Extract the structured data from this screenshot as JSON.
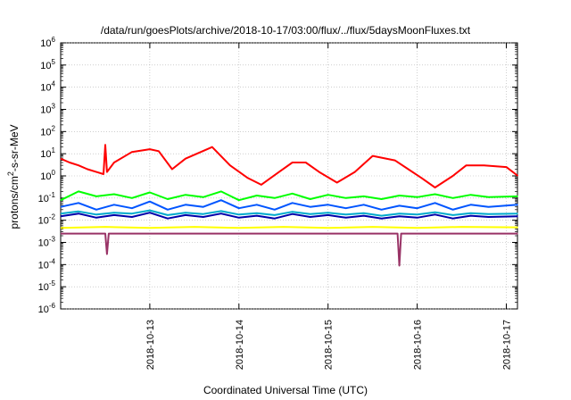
{
  "chart_data": {
    "type": "line",
    "title": "/data/run/goesPlots/archive/2018-10-17/03:00/flux/../flux/5daysMoonFluxes.txt",
    "xlabel": "Coordinated Universal Time (UTC)",
    "ylabel": "protons/cm²-s-sr-MeV",
    "y_scale": "log",
    "ylim_exp": [
      -6,
      6
    ],
    "y_tick_exponents": [
      -6,
      -5,
      -4,
      -3,
      -2,
      -1,
      0,
      1,
      2,
      3,
      4,
      5,
      6
    ],
    "x_range_days": [
      "2018-10-12 00:00",
      "2018-10-17 03:00"
    ],
    "x_ticks": [
      "2018-10-13",
      "2018-10-14",
      "2018-10-15",
      "2018-10-16",
      "2018-10-17"
    ],
    "grid": true,
    "legend": "none",
    "series": [
      {
        "color": "#ff0000",
        "x_days": [
          0.0,
          0.1,
          0.2,
          0.3,
          0.4,
          0.48,
          0.5,
          0.52,
          0.6,
          0.8,
          1.0,
          1.1,
          1.25,
          1.4,
          1.7,
          1.9,
          2.1,
          2.25,
          2.45,
          2.6,
          2.75,
          2.9,
          3.1,
          3.3,
          3.5,
          3.75,
          3.9,
          4.05,
          4.2,
          4.4,
          4.55,
          4.75,
          5.0,
          5.13
        ],
        "values": [
          6,
          4,
          3,
          2,
          1.5,
          1.2,
          25,
          1.5,
          4,
          12,
          16,
          13,
          2,
          6,
          20,
          3,
          0.8,
          0.4,
          1.5,
          4,
          4,
          1.5,
          0.5,
          1.5,
          8,
          5,
          2,
          0.8,
          0.3,
          1,
          3,
          3,
          2.5,
          1
        ]
      },
      {
        "color": "#00ff00",
        "x_days": [
          0.0,
          0.2,
          0.4,
          0.6,
          0.8,
          1.0,
          1.2,
          1.4,
          1.6,
          1.8,
          2.0,
          2.2,
          2.4,
          2.6,
          2.8,
          3.0,
          3.2,
          3.4,
          3.6,
          3.8,
          4.0,
          4.2,
          4.4,
          4.6,
          4.8,
          5.13
        ],
        "values": [
          0.08,
          0.2,
          0.12,
          0.15,
          0.1,
          0.18,
          0.09,
          0.14,
          0.11,
          0.2,
          0.08,
          0.13,
          0.1,
          0.16,
          0.09,
          0.14,
          0.1,
          0.12,
          0.09,
          0.13,
          0.11,
          0.15,
          0.1,
          0.14,
          0.11,
          0.12
        ]
      },
      {
        "color": "#0055ff",
        "x_days": [
          0.0,
          0.2,
          0.4,
          0.6,
          0.8,
          1.0,
          1.2,
          1.4,
          1.6,
          1.8,
          2.0,
          2.2,
          2.4,
          2.6,
          2.8,
          3.0,
          3.2,
          3.4,
          3.6,
          3.8,
          4.0,
          4.2,
          4.4,
          4.6,
          4.8,
          5.13
        ],
        "values": [
          0.04,
          0.06,
          0.03,
          0.05,
          0.035,
          0.07,
          0.03,
          0.05,
          0.04,
          0.08,
          0.035,
          0.05,
          0.03,
          0.06,
          0.04,
          0.05,
          0.035,
          0.05,
          0.03,
          0.045,
          0.035,
          0.06,
          0.03,
          0.05,
          0.04,
          0.05
        ]
      },
      {
        "color": "#00aacc",
        "x_days": [
          0.0,
          0.2,
          0.4,
          0.6,
          0.8,
          1.0,
          1.2,
          1.4,
          1.6,
          1.8,
          2.0,
          2.2,
          2.4,
          2.6,
          2.8,
          3.0,
          3.2,
          3.4,
          3.6,
          3.8,
          4.0,
          4.2,
          4.4,
          4.6,
          4.8,
          5.13
        ],
        "values": [
          0.02,
          0.025,
          0.018,
          0.022,
          0.02,
          0.028,
          0.017,
          0.022,
          0.019,
          0.026,
          0.018,
          0.021,
          0.017,
          0.024,
          0.019,
          0.022,
          0.018,
          0.021,
          0.016,
          0.02,
          0.018,
          0.023,
          0.017,
          0.021,
          0.019,
          0.02
        ]
      },
      {
        "color": "#0000aa",
        "x_days": [
          0.0,
          0.2,
          0.4,
          0.6,
          0.8,
          1.0,
          1.2,
          1.4,
          1.6,
          1.8,
          2.0,
          2.2,
          2.4,
          2.6,
          2.8,
          3.0,
          3.2,
          3.4,
          3.6,
          3.8,
          4.0,
          4.2,
          4.4,
          4.6,
          4.8,
          5.13
        ],
        "values": [
          0.015,
          0.02,
          0.013,
          0.017,
          0.014,
          0.022,
          0.012,
          0.017,
          0.014,
          0.02,
          0.013,
          0.016,
          0.012,
          0.019,
          0.014,
          0.017,
          0.013,
          0.016,
          0.012,
          0.015,
          0.013,
          0.018,
          0.012,
          0.016,
          0.014,
          0.015
        ]
      },
      {
        "color": "#ffff00",
        "x_days": [
          0.0,
          0.5,
          1.0,
          1.5,
          2.0,
          2.5,
          3.0,
          3.5,
          4.0,
          4.5,
          5.13
        ],
        "values": [
          0.0045,
          0.005,
          0.0045,
          0.005,
          0.0045,
          0.005,
          0.0045,
          0.005,
          0.0045,
          0.005,
          0.0048
        ]
      },
      {
        "color": "#993366",
        "x_days": [
          0.0,
          0.2,
          0.4,
          0.5,
          0.52,
          0.54,
          0.6,
          0.8,
          1.0,
          1.2,
          1.5,
          1.8,
          2.0,
          2.2,
          2.5,
          2.8,
          3.0,
          3.2,
          3.5,
          3.78,
          3.8,
          3.82,
          4.0,
          4.2,
          4.5,
          4.8,
          5.13
        ],
        "values": [
          0.0025,
          0.0025,
          0.0025,
          0.0025,
          0.0003,
          0.0025,
          0.0025,
          0.0025,
          0.0025,
          0.0025,
          0.0025,
          0.0025,
          0.0025,
          0.0025,
          0.0025,
          0.0025,
          0.0025,
          0.0025,
          0.0025,
          0.0025,
          9e-05,
          0.0025,
          0.0025,
          0.0025,
          0.0025,
          0.0025,
          0.0025
        ]
      }
    ]
  }
}
